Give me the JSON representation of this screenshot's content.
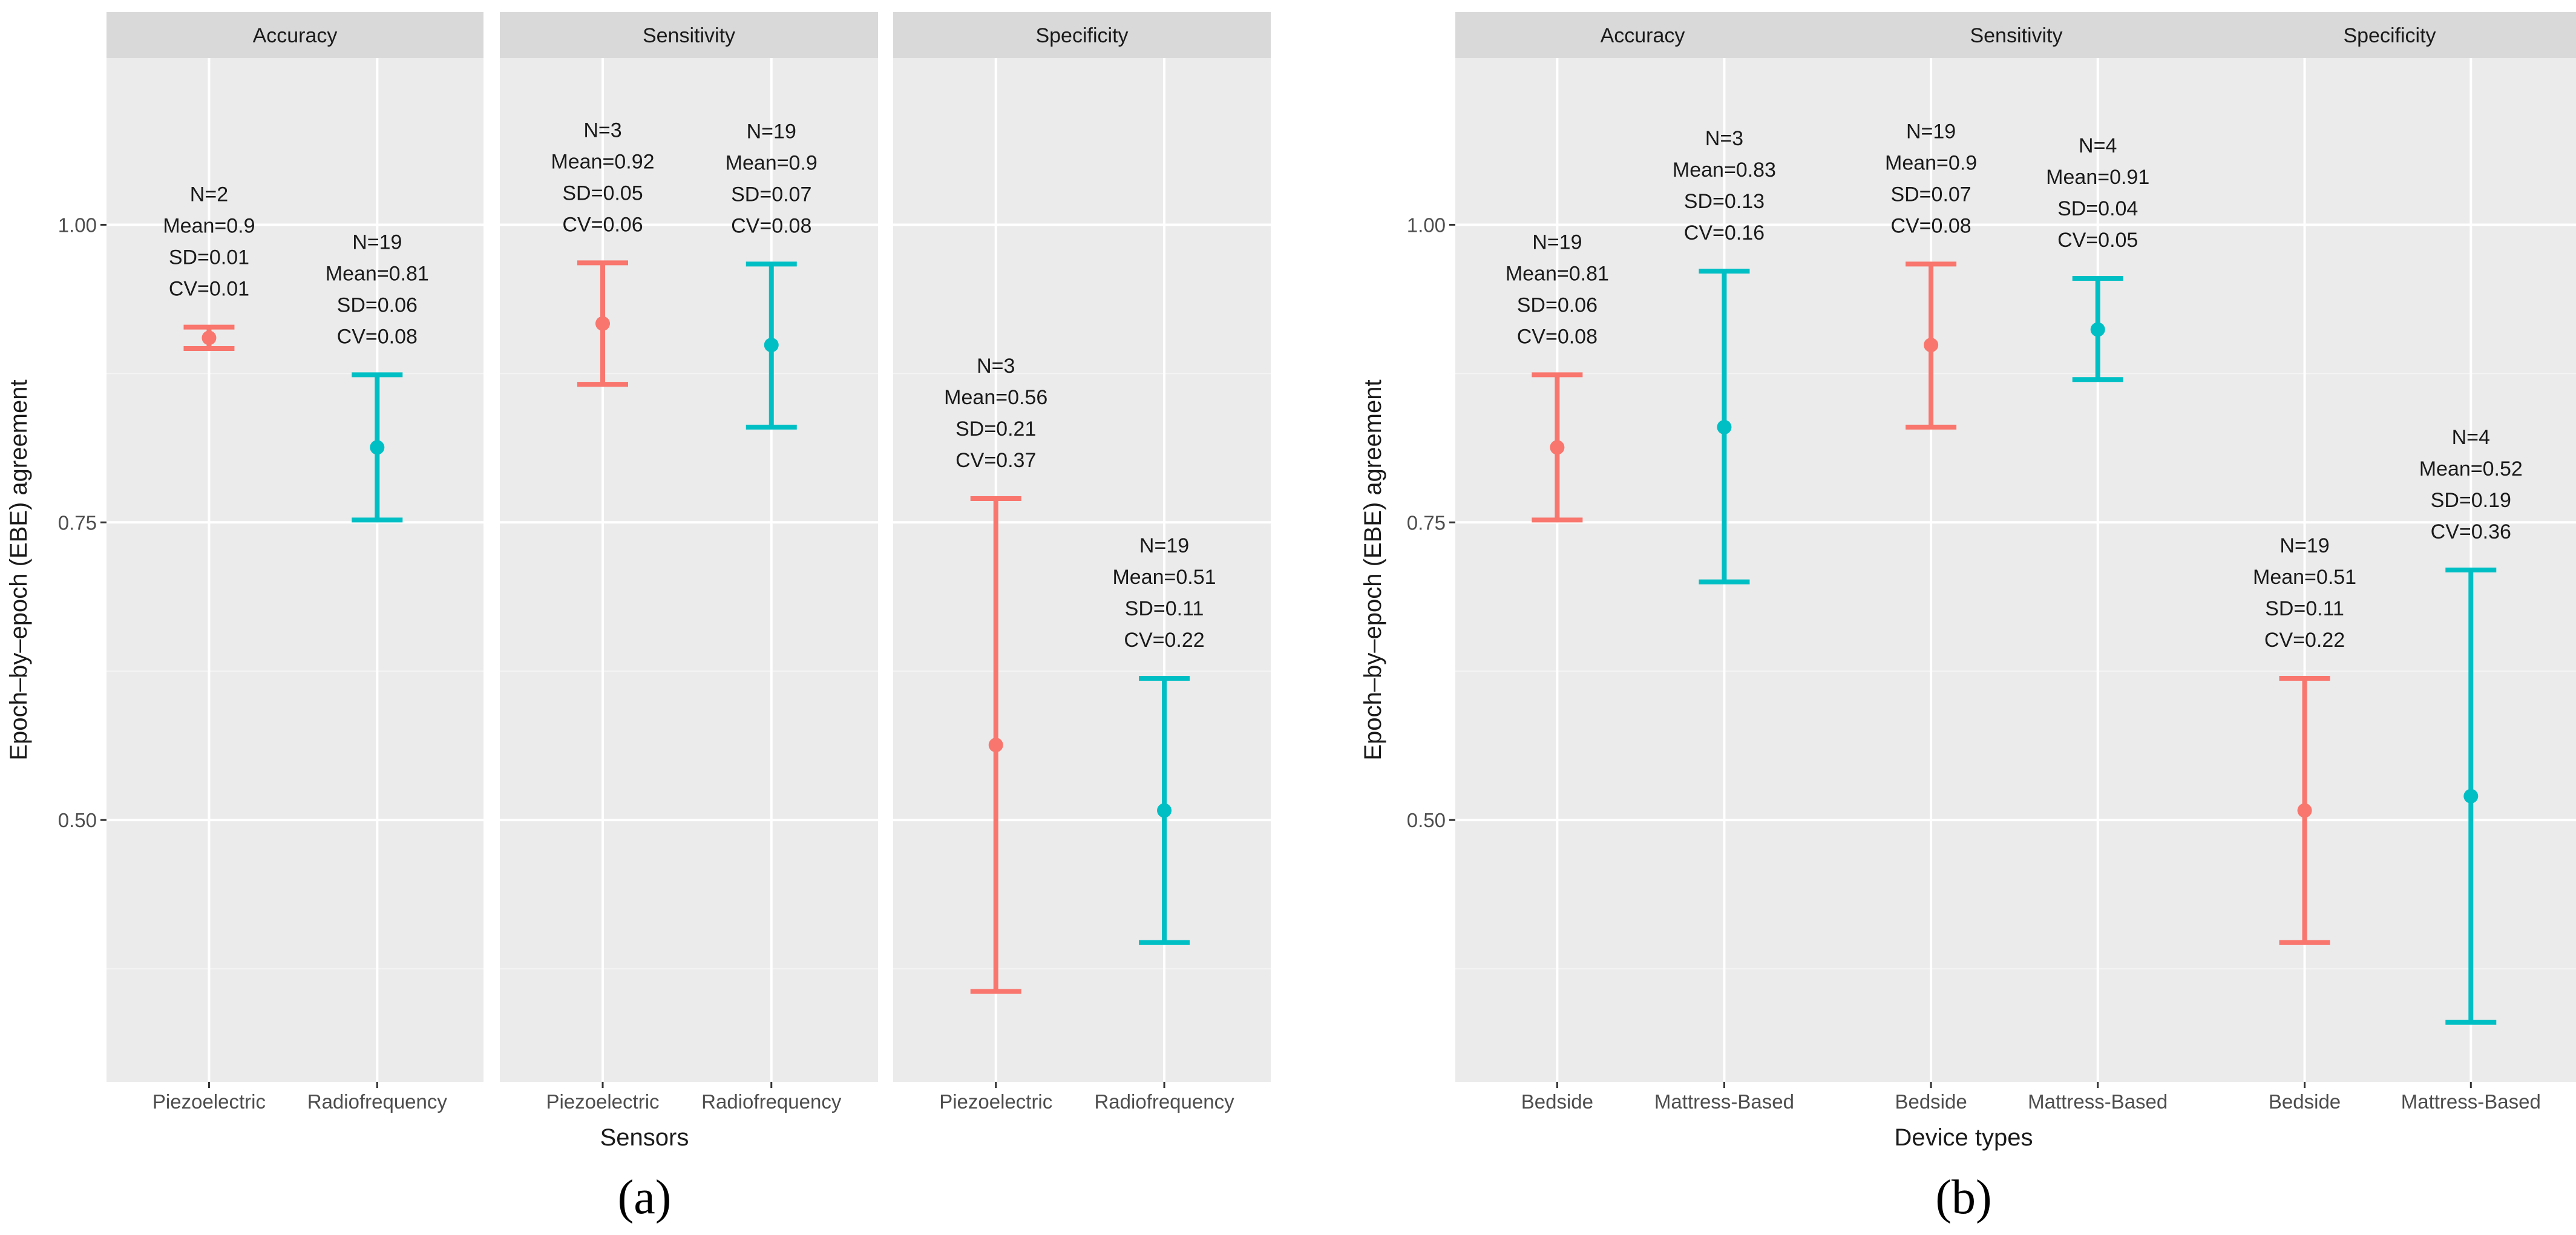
{
  "colors": {
    "series1": "#F8766D",
    "series2": "#00BFC4",
    "panel_bg": "#EBEBEB",
    "strip_bg": "#D9D9D9",
    "grid": "#FFFFFF",
    "text": "#1A1A1A",
    "axis_text": "#4D4D4D"
  },
  "figure_labels": [
    "(a)",
    "(b)"
  ],
  "chart_data": [
    {
      "type": "errorbar",
      "id": "a",
      "figure_label": "(a)",
      "ylabel": "Epoch–by–epoch (EBE) agreement",
      "xlabel": "Sensors",
      "ylim": [
        0.28,
        1.14
      ],
      "yticks": [
        0.5,
        0.75,
        1.0
      ],
      "ytick_labels": [
        "0.50",
        "0.75",
        "1.00"
      ],
      "categories": [
        "Piezoelectric",
        "Radiofrequency"
      ],
      "panels": [
        {
          "title": "Accuracy",
          "points": [
            {
              "category": "Piezoelectric",
              "mean": 0.905,
              "low": 0.896,
              "high": 0.914,
              "label": [
                "N=2",
                "Mean=0.9",
                "SD=0.01",
                "CV=0.01"
              ]
            },
            {
              "category": "Radiofrequency",
              "mean": 0.813,
              "low": 0.752,
              "high": 0.874,
              "label": [
                "N=19",
                "Mean=0.81",
                "SD=0.06",
                "CV=0.08"
              ]
            }
          ]
        },
        {
          "title": "Sensitivity",
          "points": [
            {
              "category": "Piezoelectric",
              "mean": 0.917,
              "low": 0.866,
              "high": 0.968,
              "label": [
                "N=3",
                "Mean=0.92",
                "SD=0.05",
                "CV=0.06"
              ]
            },
            {
              "category": "Radiofrequency",
              "mean": 0.899,
              "low": 0.83,
              "high": 0.967,
              "label": [
                "N=19",
                "Mean=0.9",
                "SD=0.07",
                "CV=0.08"
              ]
            }
          ]
        },
        {
          "title": "Specificity",
          "points": [
            {
              "category": "Piezoelectric",
              "mean": 0.563,
              "low": 0.356,
              "high": 0.77,
              "label": [
                "N=3",
                "Mean=0.56",
                "SD=0.21",
                "CV=0.37"
              ]
            },
            {
              "category": "Radiofrequency",
              "mean": 0.508,
              "low": 0.397,
              "high": 0.619,
              "label": [
                "N=19",
                "Mean=0.51",
                "SD=0.11",
                "CV=0.22"
              ]
            }
          ]
        }
      ]
    },
    {
      "type": "errorbar",
      "id": "b",
      "figure_label": "(b)",
      "ylabel": "Epoch–by–epoch (EBE) agreement",
      "xlabel": "Device types",
      "ylim": [
        0.28,
        1.14
      ],
      "yticks": [
        0.5,
        0.75,
        1.0
      ],
      "ytick_labels": [
        "0.50",
        "0.75",
        "1.00"
      ],
      "categories": [
        "Bedside",
        "Mattress-Based"
      ],
      "panels": [
        {
          "title": "Accuracy",
          "points": [
            {
              "category": "Bedside",
              "mean": 0.813,
              "low": 0.752,
              "high": 0.874,
              "label": [
                "N=19",
                "Mean=0.81",
                "SD=0.06",
                "CV=0.08"
              ]
            },
            {
              "category": "Mattress-Based",
              "mean": 0.83,
              "low": 0.7,
              "high": 0.961,
              "label": [
                "N=3",
                "Mean=0.83",
                "SD=0.13",
                "CV=0.16"
              ]
            }
          ]
        },
        {
          "title": "Sensitivity",
          "points": [
            {
              "category": "Bedside",
              "mean": 0.899,
              "low": 0.83,
              "high": 0.967,
              "label": [
                "N=19",
                "Mean=0.9",
                "SD=0.07",
                "CV=0.08"
              ]
            },
            {
              "category": "Mattress-Based",
              "mean": 0.912,
              "low": 0.87,
              "high": 0.955,
              "label": [
                "N=4",
                "Mean=0.91",
                "SD=0.04",
                "CV=0.05"
              ]
            }
          ]
        },
        {
          "title": "Specificity",
          "points": [
            {
              "category": "Bedside",
              "mean": 0.508,
              "low": 0.397,
              "high": 0.619,
              "label": [
                "N=19",
                "Mean=0.51",
                "SD=0.11",
                "CV=0.22"
              ]
            },
            {
              "category": "Mattress-Based",
              "mean": 0.52,
              "low": 0.33,
              "high": 0.71,
              "label": [
                "N=4",
                "Mean=0.52",
                "SD=0.19",
                "CV=0.36"
              ]
            }
          ]
        }
      ]
    }
  ]
}
